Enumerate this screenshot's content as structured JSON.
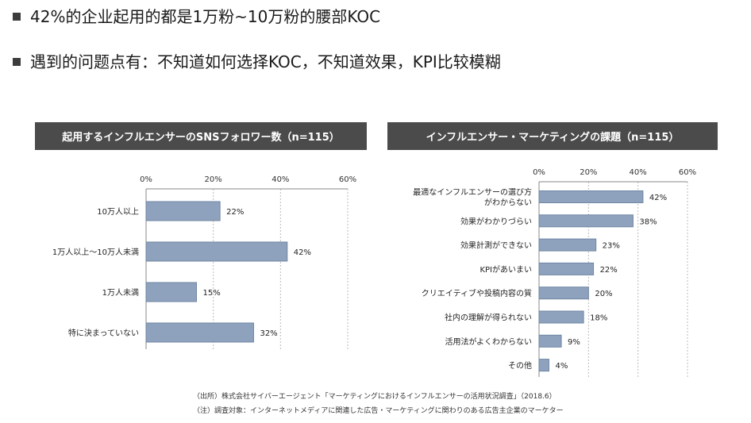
{
  "bullets": [
    "42%的企业起用的都是1万粉~10万粉的腰部KOC",
    "遇到的问题点有：不知道如何选择KOC，不知道效果，KPI比较模糊"
  ],
  "colors": {
    "bar": "#8ea2bd",
    "bar_stroke": "#6f86a3",
    "title_bg": "#4b4b4b",
    "grid": "#bbbbbb"
  },
  "chart_data": [
    {
      "type": "bar",
      "orientation": "horizontal",
      "title": "起用するインフルエンサーのSNSフォロワー数（n=115）",
      "categories": [
        "10万人以上",
        "1万人以上～10万人未満",
        "1万人未満",
        "特に決まっていない"
      ],
      "values": [
        22,
        42,
        15,
        32
      ],
      "value_labels": [
        "22%",
        "42%",
        "15%",
        "32%"
      ],
      "xlim": [
        0,
        60
      ],
      "ticks": [
        "0%",
        "20%",
        "40%",
        "60%"
      ],
      "tick_values": [
        0,
        20,
        40,
        60
      ]
    },
    {
      "type": "bar",
      "orientation": "horizontal",
      "title": "インフルエンサー・マーケティングの課題（n=115）",
      "categories": [
        [
          "最適なインフルエンサーの選び方",
          "がわからない"
        ],
        [
          "効果がわかりづらい"
        ],
        [
          "効果計測ができない"
        ],
        [
          "KPIがあいまい"
        ],
        [
          "クリエイティブや投稿内容の質"
        ],
        [
          "社内の理解が得られない"
        ],
        [
          "活用法がよくわからない"
        ],
        [
          "その他"
        ]
      ],
      "values": [
        42,
        38,
        23,
        22,
        20,
        18,
        9,
        4
      ],
      "value_labels": [
        "42%",
        "38%",
        "23%",
        "22%",
        "20%",
        "18%",
        "9%",
        "4%"
      ],
      "xlim": [
        0,
        60
      ],
      "ticks": [
        "0%",
        "20%",
        "40%",
        "60%"
      ],
      "tick_values": [
        0,
        20,
        40,
        60
      ]
    }
  ],
  "footnotes": [
    "（出所）株式会社サイバーエージェント「マーケティングにおけるインフルエンサーの活用状況調査」（2018.6）",
    "（注）調査対象：インターネットメディアに関連した広告・マーケティングに関わりのある広告主企業のマーケター"
  ]
}
